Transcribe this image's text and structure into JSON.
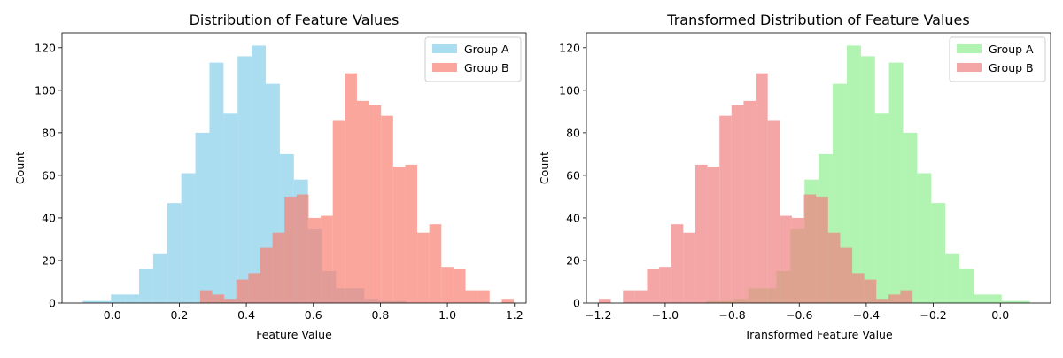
{
  "chart_data": [
    {
      "type": "bar",
      "title": "Distribution of Feature Values",
      "xlabel": "Feature Value",
      "ylabel": "Count",
      "xlim": [
        -0.15,
        1.235
      ],
      "ylim": [
        0,
        127
      ],
      "xticks": [
        0.0,
        0.2,
        0.4,
        0.6,
        0.8,
        1.0,
        1.2
      ],
      "xtick_labels": [
        "0.0",
        "0.2",
        "0.4",
        "0.6",
        "0.8",
        "1.0",
        "1.2"
      ],
      "yticks": [
        0,
        20,
        40,
        60,
        80,
        100,
        120
      ],
      "ytick_labels": [
        "0",
        "20",
        "40",
        "60",
        "80",
        "100",
        "120"
      ],
      "grid": false,
      "legend_position": "top-right",
      "series": [
        {
          "name": "Group A",
          "color": "#87ceeb",
          "opacity": 0.7,
          "bin_edges": [
            -0.088,
            -0.046,
            -0.004,
            0.038,
            0.08,
            0.122,
            0.164,
            0.206,
            0.248,
            0.29,
            0.332,
            0.374,
            0.416,
            0.458,
            0.5,
            0.542,
            0.584,
            0.626,
            0.668,
            0.71,
            0.752,
            0.794,
            0.836,
            0.878,
            0.92,
            0.962,
            1.004,
            1.046,
            1.088
          ],
          "counts": [
            1,
            1,
            4,
            4,
            16,
            23,
            47,
            61,
            80,
            113,
            89,
            116,
            121,
            103,
            70,
            58,
            35,
            15,
            7,
            7,
            2,
            1,
            1,
            0,
            0,
            0,
            0,
            0
          ]
        },
        {
          "name": "Group B",
          "color": "#fa8072",
          "opacity": 0.7,
          "bin_edges": [
            0.262,
            0.298,
            0.334,
            0.37,
            0.406,
            0.442,
            0.478,
            0.514,
            0.55,
            0.586,
            0.622,
            0.658,
            0.694,
            0.73,
            0.766,
            0.802,
            0.838,
            0.874,
            0.91,
            0.946,
            0.982,
            1.018,
            1.054,
            1.09,
            1.126,
            1.162,
            1.198
          ],
          "counts": [
            6,
            4,
            2,
            11,
            14,
            26,
            33,
            50,
            51,
            40,
            41,
            86,
            108,
            95,
            93,
            88,
            64,
            65,
            33,
            37,
            17,
            16,
            6,
            6,
            0,
            2
          ]
        }
      ]
    },
    {
      "type": "bar",
      "title": "Transformed Distribution of Feature Values",
      "xlabel": "Transformed Feature Value",
      "ylabel": "Count",
      "xlim": [
        -1.235,
        0.15
      ],
      "ylim": [
        0,
        127
      ],
      "xticks": [
        -1.2,
        -1.0,
        -0.8,
        -0.6,
        -0.4,
        -0.2,
        0.0
      ],
      "xtick_labels": [
        "−1.2",
        "−1.0",
        "−0.8",
        "−0.6",
        "−0.4",
        "−0.2",
        "0.0"
      ],
      "yticks": [
        0,
        20,
        40,
        60,
        80,
        100,
        120
      ],
      "ytick_labels": [
        "0",
        "20",
        "40",
        "60",
        "80",
        "100",
        "120"
      ],
      "grid": false,
      "legend_position": "top-right",
      "series": [
        {
          "name": "Group A",
          "color": "#90ee90",
          "opacity": 0.7,
          "bin_edges": [
            -1.088,
            -1.046,
            -1.004,
            -0.962,
            -0.92,
            -0.878,
            -0.836,
            -0.794,
            -0.752,
            -0.71,
            -0.668,
            -0.626,
            -0.584,
            -0.542,
            -0.5,
            -0.458,
            -0.416,
            -0.374,
            -0.332,
            -0.29,
            -0.248,
            -0.206,
            -0.164,
            -0.122,
            -0.08,
            -0.038,
            0.004,
            0.046,
            0.088
          ],
          "counts": [
            0,
            0,
            0,
            0,
            0,
            1,
            1,
            2,
            7,
            7,
            15,
            35,
            58,
            70,
            103,
            121,
            116,
            89,
            113,
            80,
            61,
            47,
            23,
            16,
            4,
            4,
            1,
            1
          ]
        },
        {
          "name": "Group B",
          "color": "#f08080",
          "opacity": 0.7,
          "bin_edges": [
            -1.198,
            -1.162,
            -1.126,
            -1.09,
            -1.054,
            -1.018,
            -0.982,
            -0.946,
            -0.91,
            -0.874,
            -0.838,
            -0.802,
            -0.766,
            -0.73,
            -0.694,
            -0.658,
            -0.622,
            -0.586,
            -0.55,
            -0.514,
            -0.478,
            -0.442,
            -0.406,
            -0.37,
            -0.334,
            -0.298,
            -0.262
          ],
          "counts": [
            2,
            0,
            6,
            6,
            16,
            17,
            37,
            33,
            65,
            64,
            88,
            93,
            95,
            108,
            86,
            41,
            40,
            51,
            50,
            33,
            26,
            14,
            11,
            2,
            4,
            6
          ]
        }
      ]
    }
  ]
}
